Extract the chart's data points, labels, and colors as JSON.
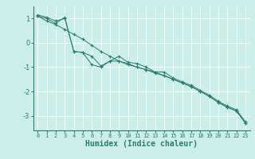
{
  "xlabel": "Humidex (Indice chaleur)",
  "bg_color": "#cceee8",
  "line_color": "#2d7d6e",
  "grid_color": "#ffffff",
  "xlim": [
    -0.5,
    23.5
  ],
  "ylim": [
    -3.6,
    1.5
  ],
  "yticks": [
    1,
    0,
    -1,
    -2,
    -3
  ],
  "xticks": [
    0,
    1,
    2,
    3,
    4,
    5,
    6,
    7,
    8,
    9,
    10,
    11,
    12,
    13,
    14,
    15,
    16,
    17,
    18,
    19,
    20,
    21,
    22,
    23
  ],
  "series": [
    [
      1.1,
      0.9,
      0.75,
      0.55,
      0.35,
      0.15,
      -0.1,
      -0.35,
      -0.55,
      -0.75,
      -0.9,
      -1.0,
      -1.1,
      -1.2,
      -1.35,
      -1.5,
      -1.65,
      -1.8,
      -2.0,
      -2.2,
      -2.45,
      -2.65,
      -2.8,
      -3.3
    ],
    [
      1.15,
      1.05,
      0.9,
      1.0,
      -0.35,
      -0.4,
      -0.9,
      -1.0,
      -0.75,
      -0.75,
      -0.85,
      -1.0,
      -1.1,
      -1.25,
      -1.35,
      -1.5,
      -1.65,
      -1.8,
      -2.0,
      -2.2,
      -2.45,
      -2.65,
      -2.8,
      -3.3
    ],
    [
      1.1,
      1.0,
      0.8,
      1.05,
      -0.35,
      -0.4,
      -0.55,
      -0.95,
      -0.75,
      -0.55,
      -0.8,
      -0.85,
      -1.0,
      -1.2,
      -1.2,
      -1.45,
      -1.6,
      -1.75,
      -1.95,
      -2.15,
      -2.4,
      -2.6,
      -2.75,
      -3.25
    ]
  ]
}
